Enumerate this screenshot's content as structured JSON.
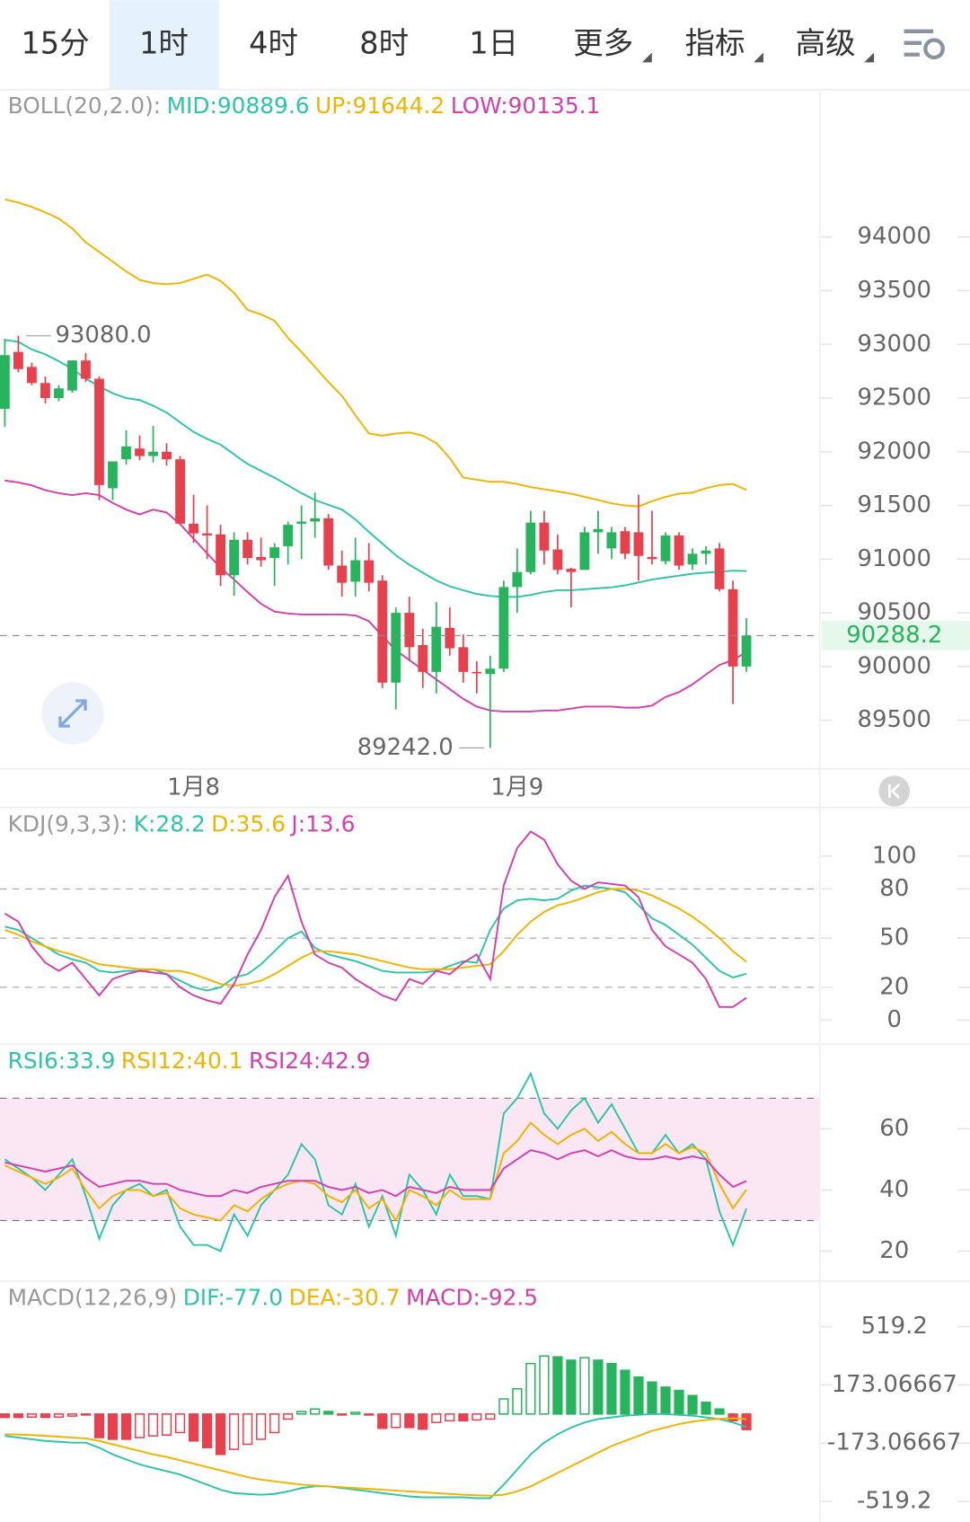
{
  "tabs": [
    "15分",
    "1时",
    "4时",
    "8时",
    "1日",
    "更多",
    "指标",
    "高级"
  ],
  "selected_tab": 1,
  "chart_data": [
    {
      "type": "candlestick",
      "label": "BOLL(20,2.0):",
      "categories": [
        null,
        null,
        null,
        null,
        null,
        null,
        null,
        null,
        null,
        null,
        null,
        null,
        null,
        null,
        "1月8",
        null,
        null,
        null,
        null,
        null,
        null,
        null,
        null,
        null,
        null,
        null,
        null,
        null,
        null,
        null,
        null,
        null,
        null,
        null,
        null,
        null,
        null,
        null,
        "1月9",
        null,
        null,
        null,
        null,
        null,
        null,
        null,
        null,
        null,
        null,
        null,
        null,
        null,
        null,
        null,
        null,
        null
      ],
      "open": [
        92400,
        92930,
        92790,
        92640,
        92500,
        92570,
        92850,
        92680,
        91660,
        91930,
        92030,
        91960,
        92000,
        91930,
        91330,
        91240,
        91230,
        90850,
        91180,
        91020,
        91010,
        91120,
        91330,
        91350,
        91380,
        90940,
        90790,
        90990,
        90800,
        89850,
        90500,
        90200,
        89950,
        90360,
        90180,
        89950,
        89930,
        89980,
        90740,
        90880,
        91340,
        91090,
        90910,
        90900,
        91250,
        91100,
        91260,
        91250,
        91020,
        90980,
        91220,
        90950,
        91050,
        91100,
        90720,
        90000
      ],
      "high": [
        93050,
        93080,
        92830,
        92700,
        92620,
        92850,
        92920,
        92700,
        91900,
        92200,
        92150,
        92240,
        92080,
        91960,
        91600,
        91500,
        91320,
        91250,
        91250,
        91200,
        91150,
        91350,
        91500,
        91620,
        91420,
        91080,
        91200,
        91150,
        90850,
        90550,
        90650,
        90350,
        90600,
        90550,
        90300,
        90050,
        90100,
        90800,
        91100,
        91450,
        91450,
        91230,
        90920,
        91300,
        91450,
        91300,
        91300,
        91600,
        91450,
        91250,
        91250,
        91100,
        91120,
        91150,
        90800,
        90450
      ],
      "low": [
        92230,
        92740,
        92620,
        92450,
        92470,
        92550,
        92650,
        91550,
        91550,
        91880,
        91920,
        91900,
        91870,
        91330,
        91150,
        91000,
        90750,
        90660,
        90950,
        90930,
        90750,
        90950,
        91000,
        91200,
        90900,
        90650,
        90650,
        90700,
        89800,
        89600,
        90050,
        89800,
        89750,
        90100,
        89850,
        89750,
        89242,
        89950,
        90500,
        90860,
        90950,
        90860,
        90550,
        90900,
        91050,
        91000,
        91000,
        90800,
        90950,
        90950,
        90900,
        90900,
        90950,
        90700,
        89650,
        89950
      ],
      "close": [
        92900,
        92770,
        92640,
        92500,
        92590,
        92850,
        92680,
        91690,
        91910,
        92050,
        91960,
        92000,
        91930,
        91330,
        91240,
        91220,
        90850,
        91180,
        91010,
        90990,
        91110,
        91320,
        91350,
        91380,
        90940,
        90780,
        90990,
        90780,
        89850,
        90500,
        90180,
        89950,
        90370,
        90170,
        89950,
        89940,
        89980,
        90740,
        90880,
        91340,
        91080,
        90900,
        90880,
        91250,
        91280,
        91250,
        91050,
        91030,
        91000,
        91220,
        90940,
        91050,
        91080,
        90720,
        90000,
        90288.2
      ],
      "up_color": "#27b45c",
      "down_color": "#e8414e",
      "series": [
        {
          "name": "MID:90889.6",
          "color": "#2ec4a9",
          "values": [
            93042,
            93024,
            92952,
            92907,
            92843,
            92771,
            92681,
            92608,
            92545,
            92500,
            92482,
            92428,
            92364,
            92274,
            92184,
            92120,
            92066,
            91976,
            91886,
            91822,
            91759,
            91687,
            91614,
            91551,
            91506,
            91461,
            91370,
            91253,
            91145,
            91036,
            90946,
            90874,
            90801,
            90747,
            90711,
            90675,
            90657,
            90648,
            90648,
            90666,
            90693,
            90711,
            90711,
            90720,
            90729,
            90738,
            90756,
            90783,
            90810,
            90828,
            90846,
            90864,
            90874,
            90883,
            90892,
            90889.6
          ]
        },
        {
          "name": "UP:91644.2",
          "color": "#f0b400",
          "values": [
            94350,
            94320,
            94280,
            94230,
            94170,
            94080,
            93950,
            93860,
            93770,
            93680,
            93600,
            93570,
            93560,
            93570,
            93610,
            93650,
            93590,
            93480,
            93320,
            93280,
            93220,
            93060,
            92930,
            92790,
            92650,
            92520,
            92340,
            92170,
            92150,
            92170,
            92180,
            92150,
            92080,
            91940,
            91760,
            91740,
            91720,
            91720,
            91700,
            91670,
            91650,
            91630,
            91610,
            91580,
            91550,
            91520,
            91500,
            91490,
            91540,
            91580,
            91610,
            91620,
            91660,
            91690,
            91700,
            91644.2
          ]
        },
        {
          "name": "LOW:90135.1",
          "color": "#d43fb0",
          "values": [
            91732,
            91714,
            91687,
            91642,
            91614,
            91596,
            91614,
            91596,
            91524,
            91461,
            91416,
            91461,
            91434,
            91325,
            91190,
            91054,
            90919,
            90810,
            90693,
            90584,
            90512,
            90494,
            90485,
            90485,
            90485,
            90485,
            90476,
            90422,
            90286,
            90151,
            90060,
            89970,
            89880,
            89789,
            89699,
            89627,
            89590,
            89581,
            89581,
            89581,
            89590,
            89590,
            89608,
            89627,
            89627,
            89627,
            89617,
            89617,
            89636,
            89717,
            89762,
            89834,
            89925,
            90015,
            90060,
            90135.1
          ]
        }
      ],
      "annotations": [
        {
          "value": 93080,
          "label": "93080.0"
        },
        {
          "value": 89242,
          "label": "89242.0"
        }
      ],
      "ylim": [
        89048,
        95373
      ],
      "yticks": [
        89500,
        90000,
        90500,
        91000,
        91500,
        92000,
        92500,
        93000,
        93500,
        94000
      ]
    },
    {
      "type": "line",
      "label": "KDJ(9,3,3):",
      "series": [
        {
          "name": "K:28.2",
          "color": "#2ec4a9",
          "values": [
            57,
            55,
            50,
            45,
            40,
            37,
            35,
            30,
            29,
            30,
            30,
            31,
            28,
            24,
            20,
            18,
            20,
            26,
            28,
            34,
            42,
            50,
            54,
            44,
            40,
            38,
            36,
            33,
            30,
            29,
            29,
            29,
            30,
            33,
            36,
            35,
            55,
            68,
            73,
            74,
            73,
            74,
            79,
            82,
            81,
            80,
            78,
            70,
            62,
            58,
            52,
            46,
            38,
            30,
            26,
            28.2
          ]
        },
        {
          "name": "D:35.6",
          "color": "#f0b400",
          "values": [
            55,
            52,
            48,
            45,
            42,
            40,
            37,
            34,
            33,
            32,
            31,
            31,
            30,
            30,
            28,
            25,
            22,
            21,
            22,
            24,
            28,
            33,
            38,
            42,
            42,
            41,
            40,
            38,
            36,
            34,
            32,
            31,
            31,
            31,
            32,
            33,
            34,
            42,
            52,
            60,
            66,
            70,
            72,
            75,
            78,
            80,
            80,
            79,
            76,
            72,
            68,
            63,
            57,
            50,
            42,
            35.6
          ]
        },
        {
          "name": "J:13.6",
          "color": "#d43fb0",
          "values": [
            65,
            60,
            45,
            35,
            30,
            35,
            25,
            15,
            25,
            28,
            30,
            29,
            28,
            20,
            15,
            12,
            10,
            22,
            40,
            55,
            75,
            88,
            60,
            40,
            35,
            32,
            25,
            20,
            15,
            12,
            25,
            22,
            30,
            28,
            35,
            40,
            25,
            82,
            105,
            115,
            110,
            95,
            85,
            80,
            84,
            83,
            82,
            75,
            55,
            45,
            40,
            35,
            25,
            8,
            8,
            13.6
          ]
        }
      ],
      "dashed_lines": [
        20,
        50,
        80
      ],
      "ylim": [
        -14.8,
        129.6
      ],
      "yticks": [
        0,
        20,
        50,
        80,
        100
      ]
    },
    {
      "type": "line",
      "series": [
        {
          "name": "RSI6:33.9",
          "color": "#2ec4a9",
          "values": [
            50,
            47,
            44,
            40,
            45,
            50,
            38,
            24,
            35,
            40,
            42,
            38,
            40,
            28,
            22,
            22,
            20,
            32,
            25,
            35,
            40,
            45,
            55,
            50,
            35,
            32,
            42,
            28,
            38,
            25,
            45,
            40,
            32,
            45,
            38,
            38,
            37,
            65,
            70,
            78,
            65,
            60,
            66,
            70,
            62,
            68,
            60,
            52,
            52,
            58,
            52,
            55,
            50,
            33,
            22,
            33.9
          ]
        },
        {
          "name": "RSI12:40.1",
          "color": "#f0b400",
          "values": [
            48,
            46,
            44,
            42,
            44,
            47,
            40,
            34,
            38,
            40,
            40,
            38,
            39,
            34,
            32,
            31,
            30,
            35,
            33,
            37,
            40,
            42,
            43,
            42,
            38,
            36,
            40,
            34,
            37,
            30,
            40,
            38,
            35,
            40,
            37,
            37,
            37,
            52,
            56,
            62,
            58,
            55,
            58,
            60,
            56,
            59,
            55,
            52,
            52,
            55,
            52,
            54,
            52,
            42,
            34,
            40.1
          ]
        },
        {
          "name": "RSI24:42.9",
          "color": "#d43fb0",
          "values": [
            49,
            48,
            47,
            46,
            47,
            48,
            44,
            41,
            42,
            43,
            43,
            42,
            42,
            40,
            39,
            38,
            38,
            40,
            39,
            41,
            42,
            43,
            43,
            43,
            41,
            40,
            41,
            39,
            40,
            38,
            41,
            40,
            39,
            41,
            40,
            40,
            40,
            47,
            50,
            53,
            52,
            50,
            52,
            53,
            51,
            53,
            51,
            50,
            50,
            51,
            50,
            51,
            50,
            45,
            41,
            42.9
          ]
        }
      ],
      "band": [
        30,
        70
      ],
      "band_color": "#fbe6f3",
      "ylim": [
        10.2,
        87.6
      ],
      "yticks": [
        20,
        40,
        60
      ]
    },
    {
      "type": "combo",
      "label": "MACD(12,26,9)",
      "series": [
        {
          "name": "DIF:-77.0",
          "color": "#2ec4a9",
          "values": [
            -130,
            -140,
            -150,
            -160,
            -165,
            -170,
            -170,
            -200,
            -240,
            -270,
            -300,
            -320,
            -340,
            -360,
            -390,
            -420,
            -450,
            -470,
            -475,
            -480,
            -475,
            -460,
            -440,
            -430,
            -430,
            -440,
            -450,
            -460,
            -470,
            -480,
            -490,
            -495,
            -495,
            -495,
            -495,
            -500,
            -500,
            -420,
            -330,
            -240,
            -170,
            -120,
            -80,
            -50,
            -30,
            -20,
            -10,
            -5,
            0,
            0,
            -5,
            -10,
            -20,
            -30,
            -50,
            -77
          ]
        },
        {
          "name": "DEA:-30.7",
          "color": "#f0b400",
          "values": [
            -120,
            -122,
            -125,
            -130,
            -135,
            -140,
            -145,
            -160,
            -180,
            -200,
            -220,
            -240,
            -255,
            -275,
            -295,
            -315,
            -335,
            -355,
            -375,
            -390,
            -400,
            -410,
            -420,
            -425,
            -430,
            -435,
            -440,
            -445,
            -450,
            -455,
            -460,
            -465,
            -470,
            -475,
            -480,
            -483,
            -485,
            -480,
            -460,
            -430,
            -390,
            -350,
            -310,
            -270,
            -230,
            -190,
            -160,
            -130,
            -100,
            -80,
            -60,
            -45,
            -35,
            -28,
            -25,
            -30.7
          ]
        }
      ],
      "histogram": {
        "name": "MACD:-92.5",
        "color": "#d43fb0",
        "up_color": "#27b45c",
        "down_color": "#e8414e",
        "values": [
          -20,
          -20,
          -18,
          -20,
          -18,
          -12,
          -5,
          -140,
          -150,
          -150,
          -140,
          -130,
          -125,
          -110,
          -160,
          -200,
          -240,
          -210,
          -180,
          -150,
          -110,
          -30,
          15,
          30,
          15,
          -5,
          10,
          -5,
          -85,
          -80,
          -80,
          -90,
          -50,
          -40,
          -40,
          -35,
          -30,
          90,
          150,
          300,
          345,
          340,
          320,
          335,
          320,
          300,
          260,
          220,
          190,
          160,
          140,
          110,
          70,
          30,
          -40,
          -92.5
        ]
      },
      "ylim": [
        -640.5,
        790.5
      ],
      "yticks": [
        -519.2,
        -173.06667,
        173.06667,
        519.2
      ]
    }
  ]
}
